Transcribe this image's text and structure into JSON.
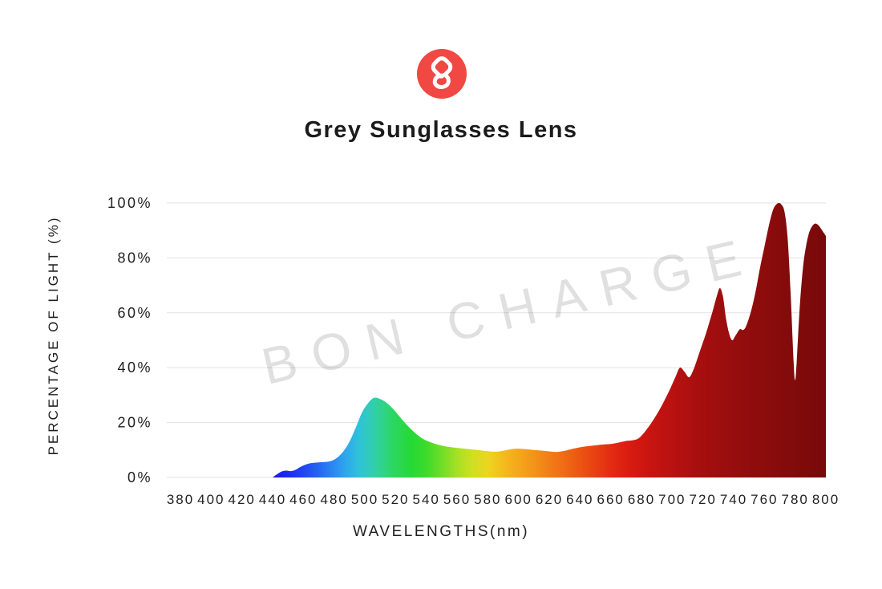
{
  "logo": {
    "name": "BON CHARGE monogram",
    "background_color": "#f04842",
    "glyph_color": "#ffffff"
  },
  "title": "Grey Sunglasses Lens",
  "watermark": "BON CHARGE",
  "axes": {
    "y_label": "PERCENTAGE OF LIGHT (%)",
    "x_label": "WAVELENGTHS(nm)",
    "y_ticks": [
      {
        "value": 100,
        "label": "100%"
      },
      {
        "value": 80,
        "label": "80%"
      },
      {
        "value": 60,
        "label": "60%"
      },
      {
        "value": 40,
        "label": "40%"
      },
      {
        "value": 20,
        "label": "20%"
      },
      {
        "value": 0,
        "label": "0%"
      }
    ],
    "x_ticks": [
      380,
      400,
      420,
      440,
      460,
      480,
      500,
      520,
      540,
      560,
      580,
      600,
      620,
      640,
      660,
      680,
      700,
      720,
      740,
      760,
      780,
      800
    ]
  },
  "chart_data": {
    "type": "area",
    "title": "Grey Sunglasses Lens",
    "xlabel": "WAVELENGTHS(nm)",
    "ylabel": "PERCENTAGE OF LIGHT (%)",
    "xlim": [
      380,
      800
    ],
    "ylim": [
      0,
      100
    ],
    "grid": "horizontal",
    "gridline_color": "#e3e3e3",
    "legend": "none",
    "series": [
      {
        "name": "grey-lens-transmission",
        "points": [
          [
            440,
            0
          ],
          [
            443,
            1.2
          ],
          [
            446,
            2.2
          ],
          [
            449,
            2.5
          ],
          [
            452,
            2.3
          ],
          [
            455,
            2.8
          ],
          [
            458,
            3.8
          ],
          [
            462,
            4.8
          ],
          [
            466,
            5.3
          ],
          [
            470,
            5.5
          ],
          [
            474,
            5.6
          ],
          [
            478,
            6
          ],
          [
            482,
            7.2
          ],
          [
            486,
            9.5
          ],
          [
            490,
            13
          ],
          [
            494,
            18
          ],
          [
            498,
            23.5
          ],
          [
            502,
            27
          ],
          [
            506,
            29
          ],
          [
            510,
            28.6
          ],
          [
            514,
            27.3
          ],
          [
            518,
            25.2
          ],
          [
            522,
            22.6
          ],
          [
            526,
            20
          ],
          [
            530,
            17.6
          ],
          [
            534,
            15.6
          ],
          [
            538,
            14
          ],
          [
            542,
            13
          ],
          [
            546,
            12.2
          ],
          [
            550,
            11.6
          ],
          [
            555,
            11.1
          ],
          [
            560,
            10.8
          ],
          [
            565,
            10.5
          ],
          [
            570,
            10.2
          ],
          [
            575,
            9.9
          ],
          [
            580,
            9.6
          ],
          [
            585,
            9.4
          ],
          [
            590,
            9.7
          ],
          [
            595,
            10.3
          ],
          [
            600,
            10.5
          ],
          [
            605,
            10.3
          ],
          [
            610,
            10
          ],
          [
            615,
            9.8
          ],
          [
            620,
            9.5
          ],
          [
            625,
            9.3
          ],
          [
            630,
            9.7
          ],
          [
            635,
            10.4
          ],
          [
            640,
            11
          ],
          [
            645,
            11.4
          ],
          [
            650,
            11.7
          ],
          [
            655,
            12
          ],
          [
            660,
            12.2
          ],
          [
            665,
            12.7
          ],
          [
            670,
            13.3
          ],
          [
            674,
            13.5
          ],
          [
            678,
            14.2
          ],
          [
            682,
            16.5
          ],
          [
            686,
            19.5
          ],
          [
            690,
            23
          ],
          [
            694,
            27
          ],
          [
            698,
            31.5
          ],
          [
            702,
            36.5
          ],
          [
            705,
            40
          ],
          [
            708,
            38.5
          ],
          [
            711,
            36.5
          ],
          [
            714,
            39.5
          ],
          [
            718,
            46
          ],
          [
            722,
            52.5
          ],
          [
            726,
            60
          ],
          [
            729,
            66
          ],
          [
            731,
            69
          ],
          [
            733,
            66
          ],
          [
            735,
            58
          ],
          [
            737,
            52.5
          ],
          [
            739,
            50
          ],
          [
            741,
            51.5
          ],
          [
            744,
            54
          ],
          [
            746,
            53.7
          ],
          [
            748,
            55
          ],
          [
            751,
            60
          ],
          [
            754,
            67
          ],
          [
            757,
            76
          ],
          [
            760,
            84
          ],
          [
            763,
            92
          ],
          [
            766,
            98
          ],
          [
            769,
            100
          ],
          [
            771,
            99.5
          ],
          [
            773,
            97
          ],
          [
            775,
            88
          ],
          [
            777,
            68
          ],
          [
            779,
            42
          ],
          [
            780,
            35.5
          ],
          [
            781,
            42
          ],
          [
            783,
            62
          ],
          [
            785,
            76
          ],
          [
            787,
            84
          ],
          [
            789,
            89
          ],
          [
            791,
            91.5
          ],
          [
            793,
            92.5
          ],
          [
            795,
            92
          ],
          [
            797,
            90.5
          ],
          [
            800,
            88
          ]
        ]
      }
    ],
    "spectrum_gradient": [
      [
        440,
        "#1c18e2"
      ],
      [
        450,
        "#1c2cee"
      ],
      [
        460,
        "#2046f2"
      ],
      [
        470,
        "#2566f3"
      ],
      [
        480,
        "#2b8af1"
      ],
      [
        488,
        "#2ea9ec"
      ],
      [
        496,
        "#2fc2da"
      ],
      [
        504,
        "#30cdb4"
      ],
      [
        512,
        "#2fd487"
      ],
      [
        520,
        "#2bd75a"
      ],
      [
        530,
        "#25d936"
      ],
      [
        540,
        "#3ddb2b"
      ],
      [
        550,
        "#70dd27"
      ],
      [
        560,
        "#a6e024"
      ],
      [
        570,
        "#cfdf22"
      ],
      [
        580,
        "#ecd520"
      ],
      [
        588,
        "#f3c11e"
      ],
      [
        596,
        "#f5ae1c"
      ],
      [
        604,
        "#f59f1b"
      ],
      [
        612,
        "#f38f19"
      ],
      [
        620,
        "#f27e17"
      ],
      [
        630,
        "#ef6a15"
      ],
      [
        640,
        "#ec5513"
      ],
      [
        650,
        "#e84012"
      ],
      [
        660,
        "#e32c12"
      ],
      [
        670,
        "#da1e11"
      ],
      [
        680,
        "#cf1611"
      ],
      [
        690,
        "#c31311"
      ],
      [
        700,
        "#b91111"
      ],
      [
        715,
        "#a90f0f"
      ],
      [
        730,
        "#9d0e0e"
      ],
      [
        745,
        "#940d0d"
      ],
      [
        760,
        "#8c0c0c"
      ],
      [
        775,
        "#840b0b"
      ],
      [
        790,
        "#7d0a0a"
      ],
      [
        800,
        "#780a0a"
      ]
    ]
  }
}
